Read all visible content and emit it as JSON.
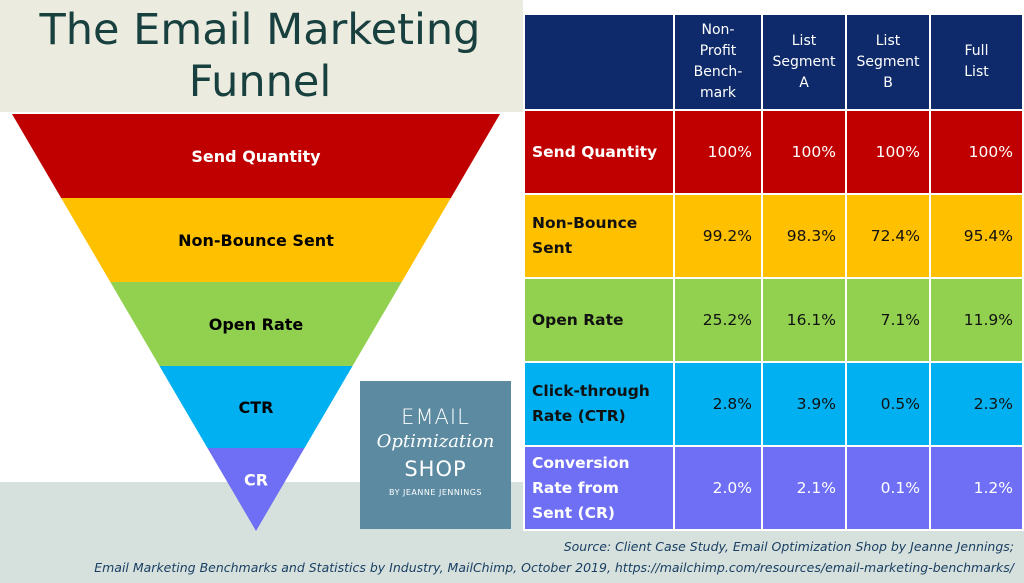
{
  "title": {
    "line1": "The Email Marketing",
    "line2": "Funnel"
  },
  "funnel": {
    "stages": [
      {
        "label": "Send Quantity",
        "color": "#c00000",
        "text_color": "#ffffff"
      },
      {
        "label": "Non-Bounce Sent",
        "color": "#ffc000",
        "text_color": "#000000"
      },
      {
        "label": "Open Rate",
        "color": "#92d050",
        "text_color": "#000000"
      },
      {
        "label": "CTR",
        "color": "#00b0f0",
        "text_color": "#000000"
      },
      {
        "label": "CR",
        "color": "#6f6ff5",
        "text_color": "#ffffff"
      }
    ]
  },
  "logo": {
    "line1": "EMAIL",
    "line2": "Optimization",
    "line3": "SHOP",
    "line4": "BY JEANNE JENNINGS",
    "color": "#5b8aa1"
  },
  "table": {
    "header_color": "#0e2a6a",
    "columns": [
      {
        "lines": [
          "Non-",
          "Profit",
          "Bench-",
          "mark"
        ]
      },
      {
        "lines": [
          "List",
          "Segment",
          "A"
        ]
      },
      {
        "lines": [
          "List",
          "Segment",
          "B"
        ]
      },
      {
        "lines": [
          "Full",
          "List"
        ]
      }
    ],
    "rows": [
      {
        "label_lines": [
          "Send Quantity"
        ],
        "values": [
          "100%",
          "100%",
          "100%",
          "100%"
        ]
      },
      {
        "label_lines": [
          "Non-Bounce",
          "Sent"
        ],
        "values": [
          "99.2%",
          "98.3%",
          "72.4%",
          "95.4%"
        ]
      },
      {
        "label_lines": [
          "Open Rate"
        ],
        "values": [
          "25.2%",
          "16.1%",
          "7.1%",
          "11.9%"
        ]
      },
      {
        "label_lines": [
          "Click-through",
          "Rate (CTR)"
        ],
        "values": [
          "2.8%",
          "3.9%",
          "0.5%",
          "2.3%"
        ]
      },
      {
        "label_lines": [
          "Conversion",
          "Rate from",
          "Sent (CR)"
        ],
        "values": [
          "2.0%",
          "2.1%",
          "0.1%",
          "1.2%"
        ]
      }
    ]
  },
  "source": {
    "line1": "Source: Client Case Study, Email Optimization Shop by Jeanne Jennings;",
    "line2": "Email Marketing Benchmarks and Statistics by Industry, MailChimp, October 2019, https://mailchimp.com/resources/email-marketing-benchmarks/"
  }
}
